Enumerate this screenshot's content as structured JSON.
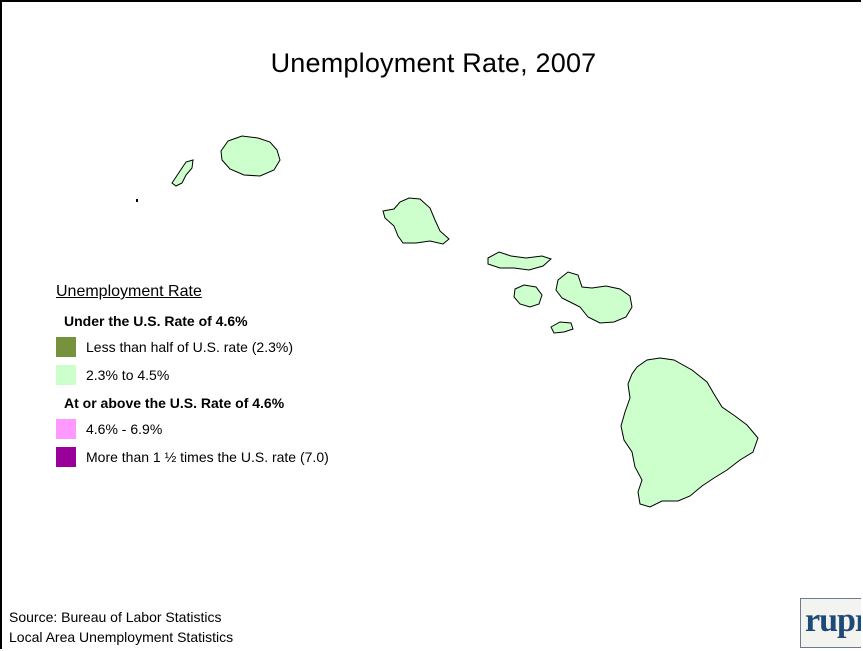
{
  "title": "Unemployment Rate, 2007",
  "map": {
    "region": "Hawaii",
    "islands": [
      {
        "name": "Niihau",
        "rate_category": "2.3% to 4.5%"
      },
      {
        "name": "Kauai",
        "rate_category": "2.3% to 4.5%"
      },
      {
        "name": "Oahu",
        "rate_category": "2.3% to 4.5%"
      },
      {
        "name": "Molokai",
        "rate_category": "2.3% to 4.5%"
      },
      {
        "name": "Lanai",
        "rate_category": "2.3% to 4.5%"
      },
      {
        "name": "Maui",
        "rate_category": "2.3% to 4.5%"
      },
      {
        "name": "Kahoolawe",
        "rate_category": "2.3% to 4.5%"
      },
      {
        "name": "Hawaii",
        "rate_category": "2.3% to 4.5%"
      }
    ],
    "island_fill": "#ccffcc"
  },
  "legend": {
    "title": "Unemployment Rate",
    "groups": [
      {
        "heading": "Under the U.S. Rate of 4.6%",
        "items": [
          {
            "label": "Less than half of U.S. rate (2.3%)",
            "color": "#76923c"
          },
          {
            "label": "2.3% to 4.5%",
            "color": "#ccffcc"
          }
        ]
      },
      {
        "heading": "At or above the U.S. Rate of 4.6%",
        "items": [
          {
            "label": "4.6% - 6.9%",
            "color": "#ff99ff"
          },
          {
            "label": "More than 1 ½ times the U.S. rate (7.0)",
            "color": "#990099"
          }
        ]
      }
    ]
  },
  "source": {
    "line1": "Source: Bureau of Labor Statistics",
    "line2": "Local Area Unemployment  Statistics"
  },
  "logo": {
    "text": "rupri"
  }
}
